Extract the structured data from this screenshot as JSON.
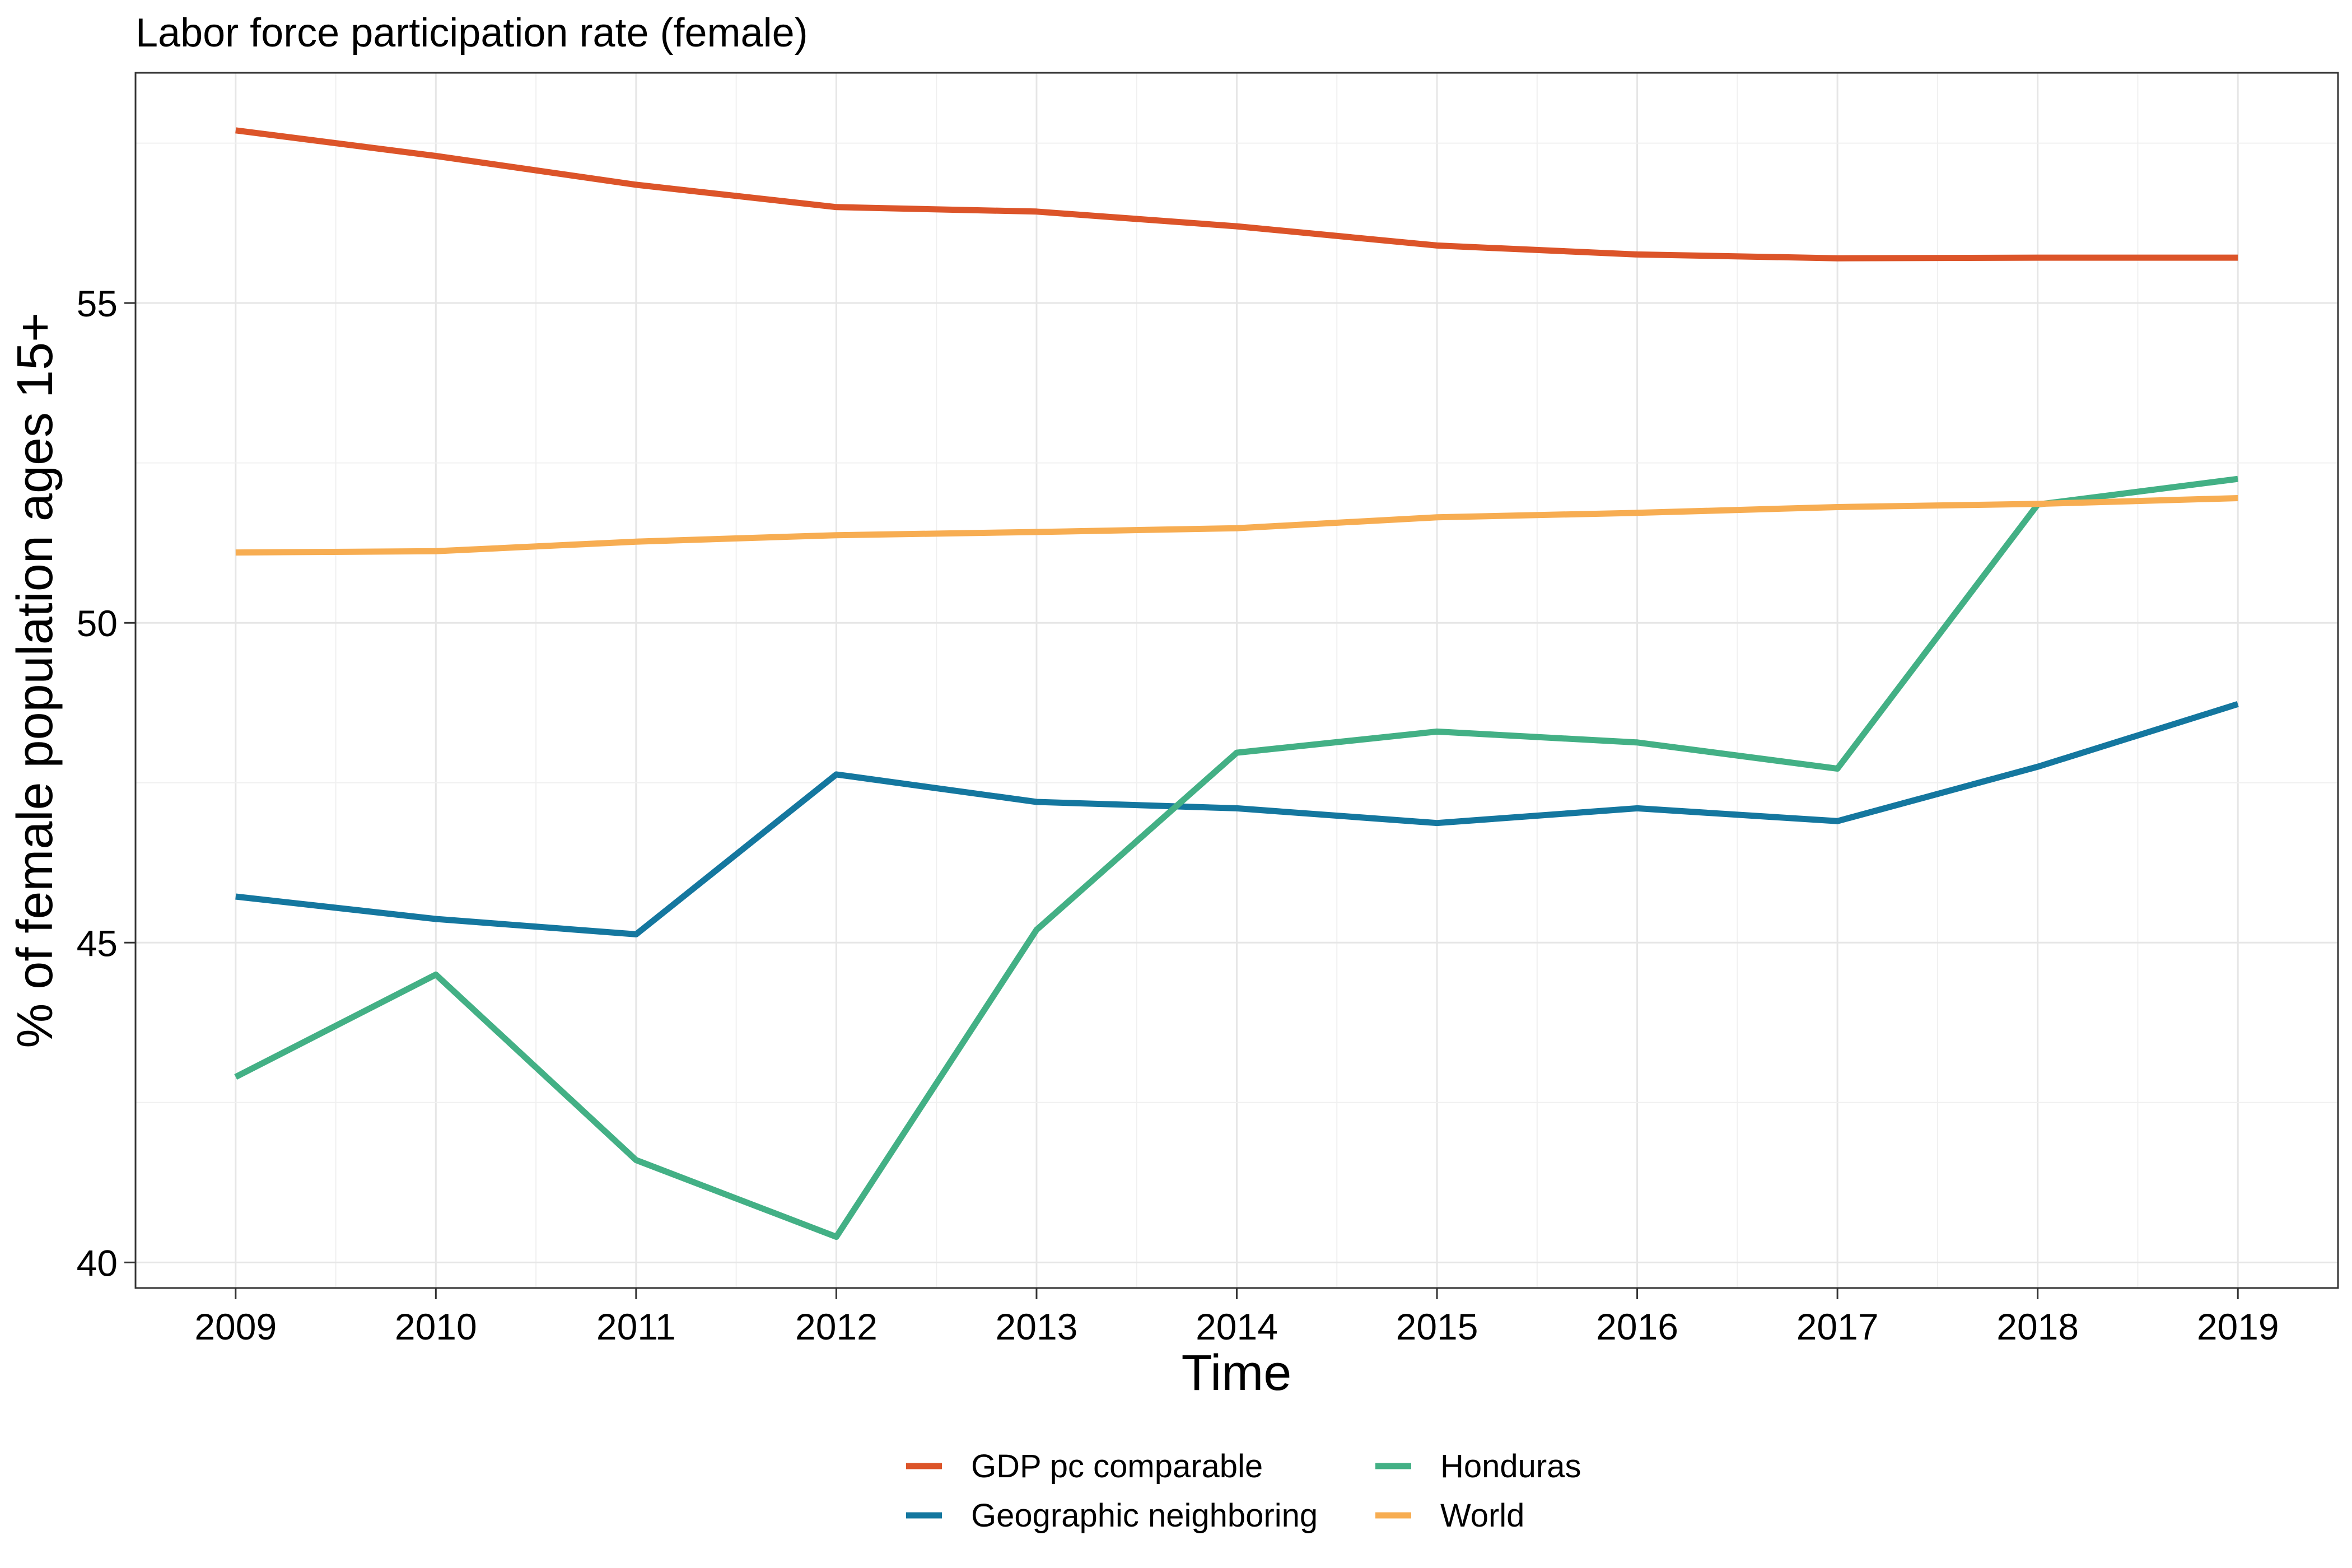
{
  "chart_data": {
    "type": "line",
    "title": "Labor force participation rate (female)",
    "xlabel": "Time",
    "ylabel": "% of female population ages 15+",
    "x": [
      2009,
      2010,
      2011,
      2012,
      2013,
      2014,
      2015,
      2016,
      2017,
      2018,
      2019
    ],
    "xticks": [
      "2009",
      "2010",
      "2011",
      "2012",
      "2013",
      "2014",
      "2015",
      "2016",
      "2017",
      "2018",
      "2019"
    ],
    "yticks": [
      "40",
      "45",
      "50",
      "55"
    ],
    "ytick_values": [
      40,
      45,
      50,
      55
    ],
    "xlim": [
      2008.5,
      2019.5
    ],
    "ylim": [
      39.6,
      58.6
    ],
    "grid": true,
    "legend_position": "bottom",
    "series": [
      {
        "name": "GDP pc comparable",
        "color": "#DC5429",
        "values": [
          57.7,
          57.3,
          56.85,
          56.5,
          56.43,
          56.2,
          55.9,
          55.76,
          55.7,
          55.71,
          55.71
        ]
      },
      {
        "name": "Geographic neighboring",
        "color": "#14779F",
        "values": [
          45.72,
          45.37,
          45.13,
          47.63,
          47.2,
          47.1,
          46.87,
          47.1,
          46.9,
          47.75,
          48.73
        ]
      },
      {
        "name": "Honduras",
        "color": "#43B085",
        "values": [
          42.9,
          44.5,
          41.6,
          40.4,
          45.2,
          47.97,
          48.3,
          48.13,
          47.72,
          51.85,
          52.25
        ]
      },
      {
        "name": "World",
        "color": "#F7AD52",
        "values": [
          51.1,
          51.12,
          51.27,
          51.37,
          51.42,
          51.48,
          51.65,
          51.72,
          51.81,
          51.86,
          51.95
        ]
      }
    ]
  }
}
